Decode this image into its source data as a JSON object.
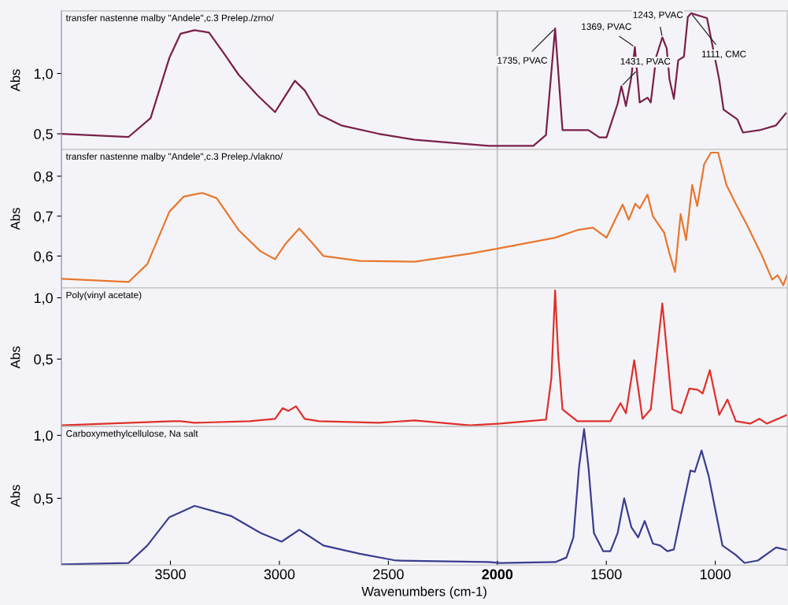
{
  "chart_data": [
    {
      "type": "line",
      "title": "transfer nastenne malby \"Andele\",c.3 Prelep./zrno/",
      "ylabel": "Abs",
      "xlim": [
        4000,
        670
      ],
      "ylim": [
        0.37,
        1.52
      ],
      "yticks": [
        {
          "value": 0.5,
          "label": "0,5"
        },
        {
          "value": 1.0,
          "label": "1,0"
        }
      ],
      "tick_labels": "y",
      "ref_lines": [
        {
          "axis": "x",
          "value": 2000,
          "color": "#b4b4b4"
        }
      ],
      "annotations": [
        {
          "text": "1735, PVAC",
          "x": 1735,
          "y": 1.375
        },
        {
          "text": "1431, PVAC",
          "x": 1431,
          "y": 0.895
        },
        {
          "text": "1369, PVAC",
          "x": 1369,
          "y": 1.22
        },
        {
          "text": "1243, PVAC",
          "x": 1243,
          "y": 1.3
        },
        {
          "text": "1111, CMC",
          "x": 1111,
          "y": 1.5
        }
      ],
      "series": [
        {
          "color": "#7a1f4a",
          "x": [
            4000,
            3692,
            3591,
            3505,
            3454,
            3389,
            3323,
            3252,
            3187,
            3101,
            3020,
            2985,
            2929,
            2884,
            2818,
            2717,
            2545,
            2379,
            2040,
            1987,
            1835,
            1777,
            1735,
            1701,
            1582,
            1532,
            1499,
            1448,
            1431,
            1410,
            1387,
            1369,
            1347,
            1311,
            1296,
            1271,
            1243,
            1223,
            1210,
            1190,
            1170,
            1144,
            1126,
            1111,
            1038,
            982,
            962,
            899,
            873,
            797,
            721,
            676
          ],
          "values": [
            0.5,
            0.474,
            0.63,
            1.13,
            1.33,
            1.36,
            1.34,
            1.16,
            0.99,
            0.82,
            0.68,
            0.78,
            0.94,
            0.86,
            0.66,
            0.57,
            0.5,
            0.45,
            0.4,
            0.4,
            0.4,
            0.49,
            1.375,
            0.53,
            0.53,
            0.47,
            0.47,
            0.75,
            0.895,
            0.73,
            0.95,
            1.22,
            0.76,
            0.8,
            0.76,
            1.14,
            1.3,
            1.21,
            0.95,
            0.79,
            1.11,
            1.14,
            1.47,
            1.5,
            1.46,
            0.95,
            0.7,
            0.62,
            0.51,
            0.53,
            0.57,
            0.67
          ]
        }
      ]
    },
    {
      "type": "line",
      "title": "transfer nastenne malby \"Andele\",c.3 Prelep./vlakno/",
      "ylabel": "Abs",
      "xlim": [
        4000,
        670
      ],
      "ylim": [
        0.52,
        0.867
      ],
      "yticks": [
        {
          "value": 0.6,
          "label": "0,6"
        },
        {
          "value": 0.7,
          "label": "0,7"
        },
        {
          "value": 0.8,
          "label": "0,8"
        }
      ],
      "tick_labels": "y",
      "ref_lines": [
        {
          "axis": "x",
          "value": 2000,
          "color": "#c8c8c8"
        }
      ],
      "series": [
        {
          "color": "#e8772e",
          "x": [
            4000,
            3692,
            3606,
            3505,
            3439,
            3353,
            3288,
            3187,
            3087,
            3020,
            2970,
            2909,
            2848,
            2798,
            2631,
            2379,
            2126,
            1987,
            1734,
            1633,
            1562,
            1499,
            1456,
            1425,
            1397,
            1367,
            1347,
            1311,
            1286,
            1235,
            1210,
            1185,
            1159,
            1134,
            1106,
            1083,
            1051,
            1020,
            987,
            949,
            906,
            856,
            790,
            739,
            714,
            688,
            671
          ],
          "values": [
            0.543,
            0.535,
            0.58,
            0.711,
            0.749,
            0.758,
            0.745,
            0.665,
            0.612,
            0.592,
            0.632,
            0.669,
            0.632,
            0.6,
            0.588,
            0.586,
            0.606,
            0.62,
            0.646,
            0.665,
            0.671,
            0.646,
            0.695,
            0.729,
            0.691,
            0.731,
            0.719,
            0.754,
            0.699,
            0.659,
            0.606,
            0.56,
            0.705,
            0.64,
            0.778,
            0.725,
            0.83,
            0.859,
            0.859,
            0.778,
            0.731,
            0.679,
            0.606,
            0.541,
            0.552,
            0.527,
            0.552
          ]
        }
      ]
    },
    {
      "type": "line",
      "title": "Poly(vinyl acetate)",
      "ylabel": "Abs",
      "xlim": [
        4000,
        670
      ],
      "ylim": [
        -0.05,
        1.08
      ],
      "yticks": [
        {
          "value": 0.5,
          "label": "0,5"
        },
        {
          "value": 1.0,
          "label": "1,0"
        }
      ],
      "tick_labels": "y",
      "ref_lines": [
        {
          "axis": "x",
          "value": 2000,
          "color": "#c8c8c8"
        }
      ],
      "series": [
        {
          "color": "#e0302a",
          "x": [
            4000,
            3490,
            3454,
            3389,
            3136,
            3020,
            2985,
            2960,
            2924,
            2884,
            2818,
            2545,
            2379,
            2126,
            1987,
            1777,
            1752,
            1735,
            1721,
            1701,
            1633,
            1481,
            1435,
            1410,
            1372,
            1334,
            1296,
            1243,
            1197,
            1157,
            1119,
            1081,
            1058,
            1025,
            982,
            944,
            906,
            840,
            797,
            764,
            671
          ],
          "values": [
            -0.04,
            -0.006,
            -0.006,
            -0.02,
            -0.006,
            0.013,
            0.1,
            0.077,
            0.115,
            0.013,
            -0.006,
            -0.02,
            0.0,
            -0.04,
            -0.026,
            0.006,
            0.346,
            1.06,
            0.54,
            0.09,
            -0.006,
            -0.006,
            0.14,
            0.058,
            0.49,
            0.013,
            0.09,
            0.955,
            0.09,
            0.058,
            0.26,
            0.25,
            0.22,
            0.41,
            0.045,
            0.17,
            -0.006,
            -0.026,
            0.013,
            -0.026,
            0.045
          ]
        }
      ]
    },
    {
      "type": "line",
      "title": "Carboxymethylcellulose, Na salt",
      "ylabel": "Abs",
      "xlabel": "Wavenumbers (cm-1)",
      "xlim": [
        4000,
        670
      ],
      "ylim": [
        -0.03,
        1.07
      ],
      "yticks": [
        {
          "value": 0.5,
          "label": "0,5"
        },
        {
          "value": 1.0,
          "label": "1,0"
        }
      ],
      "xticks": [
        3500,
        3000,
        2500,
        2000,
        1500,
        1000
      ],
      "ref_lines": [
        {
          "axis": "x",
          "value": 2000,
          "color": "#c8c8c8"
        }
      ],
      "series": [
        {
          "color": "#3a3d8f",
          "x": [
            4000,
            3692,
            3606,
            3505,
            3389,
            3222,
            3086,
            2990,
            2909,
            2869,
            2798,
            2631,
            2465,
            2040,
            1987,
            1734,
            1683,
            1651,
            1625,
            1602,
            1582,
            1557,
            1514,
            1481,
            1448,
            1418,
            1385,
            1354,
            1324,
            1286,
            1253,
            1220,
            1190,
            1152,
            1114,
            1094,
            1063,
            1030,
            1000,
            967,
            906,
            866,
            805,
            721,
            671
          ],
          "values": [
            -0.025,
            -0.013,
            0.125,
            0.35,
            0.44,
            0.36,
            0.225,
            0.156,
            0.25,
            0.206,
            0.125,
            0.06,
            0.006,
            -0.006,
            -0.013,
            -0.006,
            0.03,
            0.19,
            0.75,
            1.05,
            0.75,
            0.225,
            0.08,
            0.08,
            0.225,
            0.5,
            0.27,
            0.19,
            0.32,
            0.14,
            0.125,
            0.08,
            0.094,
            0.41,
            0.72,
            0.71,
            0.88,
            0.675,
            0.41,
            0.125,
            0.05,
            -0.013,
            0.006,
            0.11,
            0.09
          ]
        }
      ]
    }
  ]
}
